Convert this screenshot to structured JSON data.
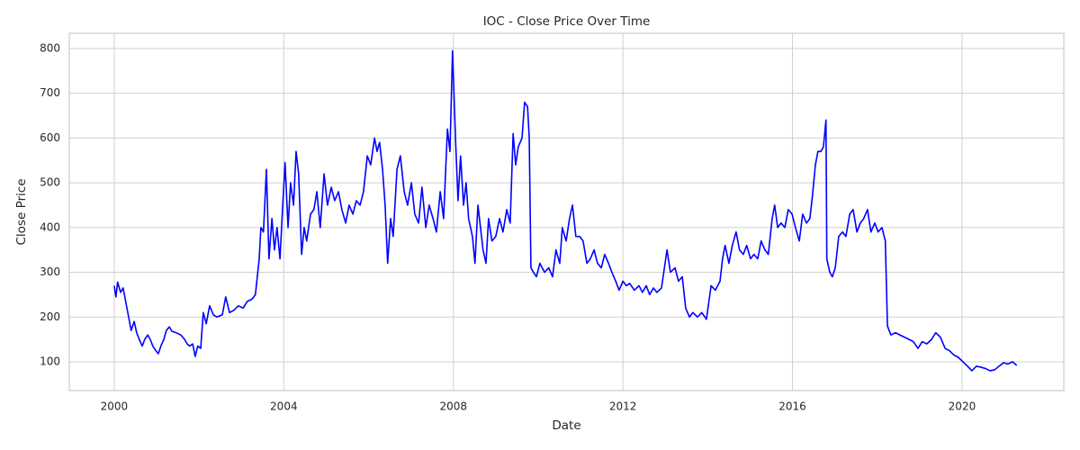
{
  "chart_data": {
    "type": "line",
    "title": "IOC - Close Price Over Time",
    "x_label": "Date",
    "y_label": "Close Price",
    "x": [
      2000.0,
      2000.04,
      2000.08,
      2000.15,
      2000.21,
      2000.28,
      2000.34,
      2000.4,
      2000.47,
      2000.53,
      2000.59,
      2000.66,
      2000.72,
      2000.79,
      2000.85,
      2000.91,
      2000.98,
      2001.04,
      2001.1,
      2001.17,
      2001.23,
      2001.3,
      2001.36,
      2001.46,
      2001.57,
      2001.66,
      2001.72,
      2001.78,
      2001.85,
      2001.91,
      2001.97,
      2002.04,
      2002.1,
      2002.17,
      2002.25,
      2002.34,
      2002.42,
      2002.55,
      2002.63,
      2002.72,
      2002.82,
      2002.93,
      2003.04,
      2003.14,
      2003.25,
      2003.33,
      2003.42,
      2003.46,
      2003.52,
      2003.59,
      2003.65,
      2003.72,
      2003.78,
      2003.84,
      2003.91,
      2003.97,
      2004.03,
      2004.1,
      2004.16,
      2004.23,
      2004.29,
      2004.35,
      2004.42,
      2004.48,
      2004.54,
      2004.63,
      2004.71,
      2004.78,
      2004.86,
      2004.95,
      2005.03,
      2005.12,
      2005.2,
      2005.29,
      2005.37,
      2005.46,
      2005.54,
      2005.63,
      2005.71,
      2005.8,
      2005.88,
      2005.97,
      2006.05,
      2006.14,
      2006.2,
      2006.26,
      2006.33,
      2006.39,
      2006.45,
      2006.52,
      2006.58,
      2006.67,
      2006.75,
      2006.84,
      2006.92,
      2007.01,
      2007.09,
      2007.18,
      2007.26,
      2007.35,
      2007.43,
      2007.52,
      2007.6,
      2007.69,
      2007.77,
      2007.86,
      2007.92,
      2007.98,
      2008.05,
      2008.11,
      2008.17,
      2008.24,
      2008.3,
      2008.36,
      2008.45,
      2008.51,
      2008.58,
      2008.64,
      2008.7,
      2008.77,
      2008.83,
      2008.91,
      2009.0,
      2009.09,
      2009.17,
      2009.26,
      2009.34,
      2009.41,
      2009.47,
      2009.53,
      2009.62,
      2009.68,
      2009.75,
      2009.79,
      2009.83,
      2009.89,
      2009.96,
      2010.04,
      2010.15,
      2010.25,
      2010.34,
      2010.42,
      2010.51,
      2010.57,
      2010.66,
      2010.74,
      2010.81,
      2010.89,
      2010.98,
      2011.06,
      2011.15,
      2011.23,
      2011.32,
      2011.4,
      2011.49,
      2011.57,
      2011.66,
      2011.74,
      2011.83,
      2011.91,
      2012.0,
      2012.08,
      2012.16,
      2012.27,
      2012.38,
      2012.46,
      2012.55,
      2012.63,
      2012.72,
      2012.8,
      2012.91,
      2013.04,
      2013.12,
      2013.23,
      2013.31,
      2013.4,
      2013.48,
      2013.57,
      2013.65,
      2013.76,
      2013.86,
      2013.97,
      2014.08,
      2014.18,
      2014.29,
      2014.35,
      2014.41,
      2014.5,
      2014.58,
      2014.67,
      2014.75,
      2014.84,
      2014.92,
      2015.01,
      2015.09,
      2015.18,
      2015.26,
      2015.35,
      2015.43,
      2015.52,
      2015.58,
      2015.65,
      2015.73,
      2015.82,
      2015.9,
      2015.99,
      2016.07,
      2016.16,
      2016.24,
      2016.33,
      2016.41,
      2016.47,
      2016.54,
      2016.6,
      2016.67,
      2016.73,
      2016.79,
      2016.81,
      2016.88,
      2016.94,
      2017.01,
      2017.09,
      2017.18,
      2017.26,
      2017.35,
      2017.43,
      2017.52,
      2017.6,
      2017.68,
      2017.77,
      2017.85,
      2017.94,
      2018.02,
      2018.11,
      2018.19,
      2018.24,
      2018.32,
      2018.43,
      2018.53,
      2018.64,
      2018.75,
      2018.85,
      2018.96,
      2019.06,
      2019.17,
      2019.28,
      2019.38,
      2019.49,
      2019.6,
      2019.7,
      2019.81,
      2019.91,
      2020.02,
      2020.13,
      2020.23,
      2020.34,
      2020.44,
      2020.55,
      2020.66,
      2020.77,
      2020.87,
      2020.98,
      2021.08,
      2021.19,
      2021.29
    ],
    "series": [
      {
        "name": "Close",
        "color": "#0000ff",
        "values": [
          270,
          245,
          278,
          255,
          265,
          230,
          200,
          170,
          190,
          165,
          150,
          135,
          150,
          160,
          150,
          135,
          125,
          118,
          135,
          150,
          170,
          178,
          168,
          165,
          160,
          150,
          140,
          135,
          140,
          112,
          135,
          130,
          210,
          185,
          225,
          205,
          200,
          205,
          245,
          210,
          215,
          225,
          220,
          235,
          240,
          250,
          330,
          400,
          390,
          530,
          330,
          420,
          350,
          400,
          330,
          440,
          545,
          400,
          500,
          450,
          570,
          520,
          340,
          400,
          370,
          430,
          440,
          480,
          400,
          520,
          450,
          490,
          460,
          480,
          440,
          410,
          450,
          430,
          460,
          450,
          480,
          560,
          540,
          600,
          570,
          590,
          530,
          450,
          320,
          420,
          380,
          530,
          560,
          480,
          450,
          500,
          430,
          410,
          490,
          400,
          450,
          420,
          390,
          480,
          420,
          620,
          570,
          795,
          600,
          460,
          560,
          450,
          500,
          420,
          380,
          320,
          450,
          400,
          350,
          320,
          420,
          370,
          380,
          420,
          390,
          440,
          410,
          610,
          540,
          580,
          600,
          680,
          670,
          600,
          310,
          300,
          290,
          320,
          300,
          310,
          290,
          350,
          320,
          400,
          370,
          420,
          450,
          380,
          380,
          370,
          320,
          330,
          350,
          320,
          310,
          340,
          320,
          300,
          280,
          260,
          280,
          270,
          275,
          260,
          270,
          255,
          270,
          250,
          265,
          255,
          265,
          350,
          300,
          310,
          280,
          290,
          220,
          200,
          210,
          200,
          210,
          195,
          270,
          260,
          280,
          330,
          360,
          320,
          360,
          390,
          350,
          340,
          360,
          330,
          340,
          330,
          370,
          350,
          340,
          420,
          450,
          400,
          410,
          400,
          440,
          430,
          400,
          370,
          430,
          410,
          420,
          470,
          540,
          570,
          570,
          580,
          640,
          330,
          300,
          290,
          310,
          380,
          390,
          380,
          430,
          440,
          390,
          410,
          420,
          440,
          390,
          410,
          390,
          400,
          370,
          180,
          160,
          165,
          160,
          155,
          150,
          145,
          130,
          145,
          140,
          150,
          165,
          155,
          130,
          125,
          115,
          110,
          100,
          90,
          80,
          90,
          88,
          85,
          80,
          82,
          90,
          98,
          95,
          100,
          92
        ]
      }
    ],
    "xlim": [
      1998.94,
      2022.4
    ],
    "xticks": [
      2000,
      2004,
      2008,
      2012,
      2016,
      2020
    ],
    "ylim": [
      35.6,
      834
    ],
    "yticks": [
      100,
      200,
      300,
      400,
      500,
      600,
      700,
      800
    ],
    "grid": true
  }
}
